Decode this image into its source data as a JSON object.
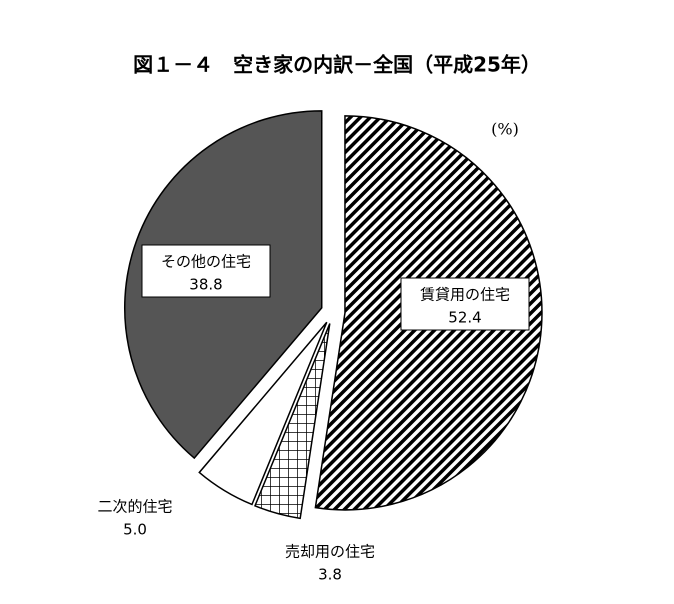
{
  "chart_data": {
    "type": "pie",
    "title": "図１－４　空き家の内訳－全国（平成25年）",
    "unit": "(%)",
    "categories": [
      "賃貸用の住宅",
      "売却用の住宅",
      "二次的住宅",
      "その他の住宅"
    ],
    "values": [
      52.4,
      3.8,
      5.0,
      38.8
    ],
    "value_labels": [
      "52.4",
      "3.8",
      "5.0",
      "38.8"
    ],
    "colors": [
      "#ffffff",
      "#ffffff",
      "#ffffff",
      "#555555"
    ],
    "patterns": [
      "diagonal",
      "grid",
      "none",
      "none"
    ]
  }
}
